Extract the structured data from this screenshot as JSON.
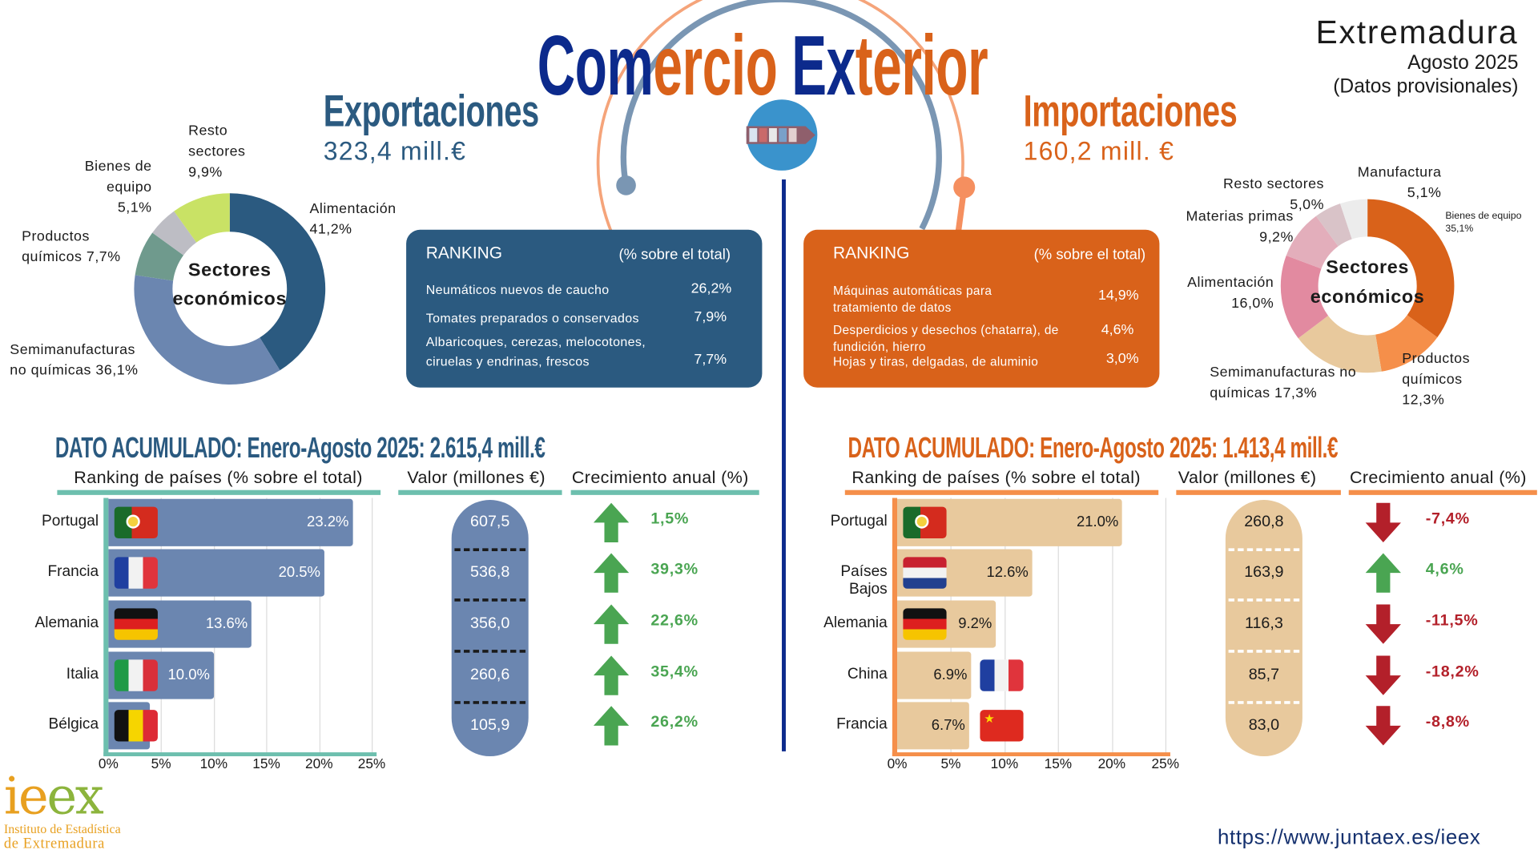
{
  "header": {
    "title_parts": [
      "Com",
      "ercio",
      "Ex",
      "terior"
    ],
    "region": "Extremadura",
    "period": "Agosto 2025",
    "note": "(Datos provisionales)"
  },
  "colors": {
    "navy": "#0c2a8c",
    "export": "#2b5a80",
    "import": "#d9621a",
    "export_bar": "#6b86b0",
    "import_bar": "#e8c99d",
    "up": "#4aa552",
    "down": "#b3202a"
  },
  "exports": {
    "title": "Exportaciones",
    "value": "323,4 mill.€",
    "donut_center": [
      "Sectores",
      "económicos"
    ],
    "sectors": [
      {
        "label": "Alimentación",
        "pct_text": "41,2%",
        "value": 41.2,
        "color": "#2b5a80"
      },
      {
        "label": "Semimanufacturas no químicas",
        "pct_text": "36,1%",
        "value": 36.1,
        "color": "#6b86b0"
      },
      {
        "label": "Productos químicos",
        "pct_text": "7,7%",
        "value": 7.7,
        "color": "#6f9a8d"
      },
      {
        "label": "Bienes de equipo",
        "pct_text": "5,1%",
        "value": 5.1,
        "color": "#bdbdc4"
      },
      {
        "label": "Resto sectores",
        "pct_text": "9,9%",
        "value": 9.9,
        "color": "#c9e265"
      }
    ],
    "ranking": {
      "title": "RANKING",
      "subtitle": "(% sobre el total)",
      "items": [
        {
          "product": "Neumáticos  nuevos de caucho",
          "pct": "26,2%"
        },
        {
          "product": "Tomates preparados o conservados",
          "pct": "7,9%"
        },
        {
          "product": "Albaricoques, cerezas, melocotones, ciruelas y endrinas, frescos",
          "pct": "7,7%"
        }
      ]
    },
    "cumulative": "DATO ACUMULADO: Enero-Agosto 2025: 2.615,4 mill.€",
    "col_headers": {
      "ranking": "Ranking de países (% sobre el total)",
      "value": "Valor (millones €)",
      "growth": "Crecimiento anual (%)"
    },
    "countries": [
      {
        "name": "Portugal",
        "flag": "portugal-flag",
        "share": 23.2,
        "share_text": "23.2%",
        "value": "607,5",
        "growth": "1,5%",
        "trend": "up"
      },
      {
        "name": "Francia",
        "flag": "france-flag",
        "share": 20.5,
        "share_text": "20.5%",
        "value": "536,8",
        "growth": "39,3%",
        "trend": "up"
      },
      {
        "name": "Alemania",
        "flag": "germany-flag",
        "share": 13.6,
        "share_text": "13.6%",
        "value": "356,0",
        "growth": "22,6%",
        "trend": "up"
      },
      {
        "name": "Italia",
        "flag": "italy-flag",
        "share": 10.0,
        "share_text": "10.0%",
        "value": "260,6",
        "growth": "35,4%",
        "trend": "up"
      },
      {
        "name": "Bélgica",
        "flag": "belgium-flag",
        "share": 3.9,
        "share_text": "",
        "value": "105,9",
        "growth": "26,2%",
        "trend": "up"
      }
    ]
  },
  "imports": {
    "title": "Importaciones",
    "value": "160,2 mill. €",
    "donut_center": [
      "Sectores",
      "económicos"
    ],
    "sectors": [
      {
        "label": "Bienes de equipo",
        "pct_text": "35,1%",
        "value": 35.1,
        "color": "#d9621a"
      },
      {
        "label": "Productos químicos",
        "pct_text": "12,3%",
        "value": 12.3,
        "color": "#f58f4a"
      },
      {
        "label": "Semimanufacturas no químicas",
        "pct_text": "17,3%",
        "value": 17.3,
        "color": "#e8c99d"
      },
      {
        "label": "Alimentación",
        "pct_text": "16,0%",
        "value": 16.0,
        "color": "#e28aa0"
      },
      {
        "label": "Materias primas",
        "pct_text": "9,2%",
        "value": 9.2,
        "color": "#e3aebb"
      },
      {
        "label": "Resto sectores",
        "pct_text": "5,0%",
        "value": 5.0,
        "color": "#d9c3c8"
      },
      {
        "label": "Manufactura",
        "pct_text": "5,1%",
        "value": 5.1,
        "color": "#ececec"
      }
    ],
    "ranking": {
      "title": "RANKING",
      "subtitle": "(% sobre el total)",
      "items": [
        {
          "product": "Máquinas automáticas para tratamiento de datos",
          "pct": "14,9%"
        },
        {
          "product": "Desperdicios y desechos (chatarra), de fundición, hierro",
          "pct": "4,6%"
        },
        {
          "product": "Hojas y tiras, delgadas, de aluminio",
          "pct": "3,0%"
        }
      ]
    },
    "cumulative": "DATO ACUMULADO: Enero-Agosto 2025: 1.413,4 mill.€",
    "col_headers": {
      "ranking": "Ranking de países (% sobre el total)",
      "value": "Valor (millones €)",
      "growth": "Crecimiento anual (%)"
    },
    "countries": [
      {
        "name": "Portugal",
        "flag": "portugal-flag",
        "share": 21.0,
        "share_text": "21.0%",
        "value": "260,8",
        "growth": "-7,4%",
        "trend": "down"
      },
      {
        "name": "Países Bajos",
        "flag": "netherlands-flag",
        "share": 12.6,
        "share_text": "12.6%",
        "value": "163,9",
        "growth": "4,6%",
        "trend": "up"
      },
      {
        "name": "Alemania",
        "flag": "germany-flag",
        "share": 9.2,
        "share_text": "9.2%",
        "value": "116,3",
        "growth": "-11,5%",
        "trend": "down"
      },
      {
        "name": "China",
        "flag": "france-flag",
        "share": 6.9,
        "share_text": "6.9%",
        "value": "85,7",
        "growth": "-18,2%",
        "trend": "down"
      },
      {
        "name": "Francia",
        "flag": "china-flag",
        "share": 6.7,
        "share_text": "6.7%",
        "value": "83,0",
        "growth": "-8,8%",
        "trend": "down"
      }
    ]
  },
  "chart_data": [
    {
      "type": "bar",
      "orientation": "horizontal",
      "title": "Ranking de países (% sobre el total)",
      "categories": [
        "Portugal",
        "Francia",
        "Alemania",
        "Italia",
        "Bélgica"
      ],
      "values": [
        23.2,
        20.5,
        13.6,
        10.0,
        3.9
      ],
      "xlim": [
        0,
        25
      ],
      "xticks": [
        "0%",
        "5%",
        "10%",
        "15%",
        "20%",
        "25%"
      ],
      "grid": true
    },
    {
      "type": "bar",
      "orientation": "horizontal",
      "title": "Ranking de países (% sobre el total)",
      "categories": [
        "Portugal",
        "Países Bajos",
        "Alemania",
        "China",
        "Francia"
      ],
      "values": [
        21.0,
        12.6,
        9.2,
        6.9,
        6.7
      ],
      "xlim": [
        0,
        25
      ],
      "xticks": [
        "0%",
        "5%",
        "10%",
        "15%",
        "20%",
        "25%"
      ],
      "grid": true
    }
  ],
  "footer": {
    "logo": "ieex",
    "logo_sub1": "Instituto de Estadística",
    "logo_sub2": "de Extremadura",
    "url": "https://www.juntaex.es/ieex"
  }
}
